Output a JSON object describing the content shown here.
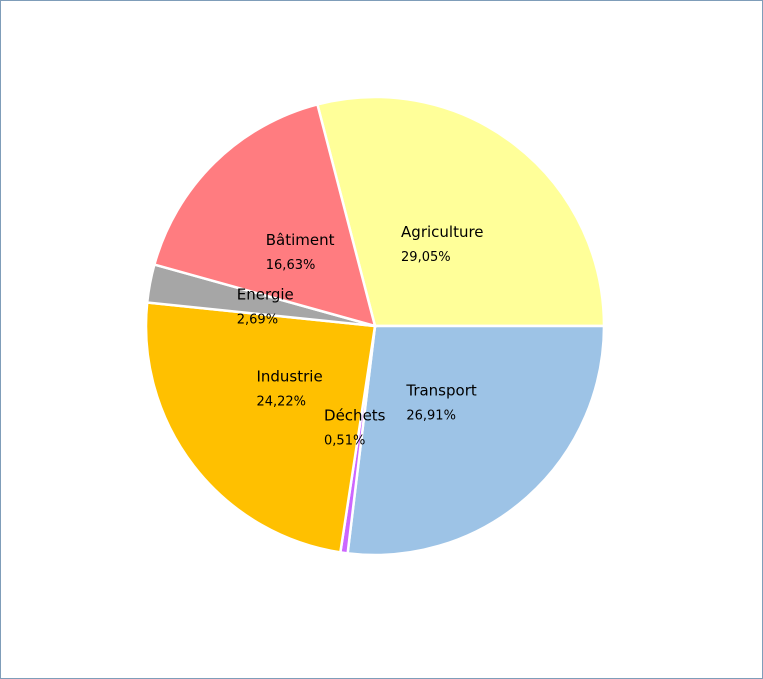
{
  "chart_data": {
    "type": "pie",
    "categories": [
      "Agriculture",
      "Transport",
      "Déchets",
      "Industrie",
      "Energie",
      "Bâtiment"
    ],
    "values": [
      29.05,
      26.91,
      0.51,
      24.22,
      2.69,
      16.63
    ],
    "value_labels": [
      "29,05%",
      "26,91%",
      "0,51%",
      "24,22%",
      "2,69%",
      "16,63%"
    ],
    "colors": [
      "#ffff99",
      "#9dc3e6",
      "#cc66ff",
      "#ffc000",
      "#a6a6a6",
      "#ff7c80"
    ]
  }
}
